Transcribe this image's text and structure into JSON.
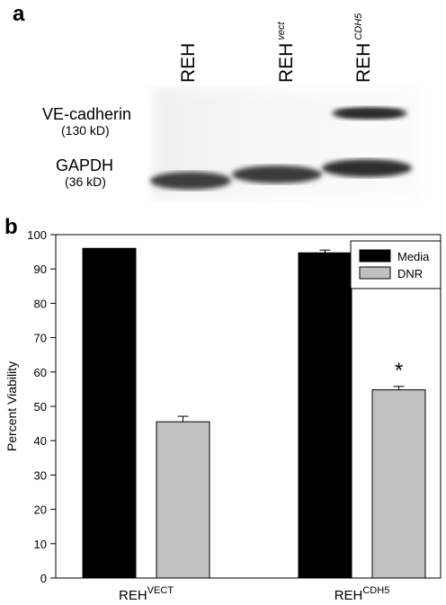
{
  "panel_a": {
    "label": "a",
    "lanes": [
      {
        "name": "REH",
        "sup": ""
      },
      {
        "name": "REH",
        "sup": "vect"
      },
      {
        "name": "REH",
        "sup": "CDH5"
      }
    ],
    "bands": [
      {
        "name": "VE-cadherin",
        "mw": "(130 kD)"
      },
      {
        "name": "GAPDH",
        "mw": "(36 kD)"
      }
    ]
  },
  "panel_b": {
    "label": "b"
  },
  "chart_data": {
    "type": "bar",
    "ylabel": "Percent Viability",
    "ylim": [
      0,
      100
    ],
    "yticks": [
      0,
      10,
      20,
      30,
      40,
      50,
      60,
      70,
      80,
      90,
      100
    ],
    "categories": [
      {
        "base": "REH",
        "sup": "VECT"
      },
      {
        "base": "REH",
        "sup": "CDH5"
      }
    ],
    "series": [
      {
        "name": "Media",
        "color": "#000000",
        "values": [
          96,
          94.7
        ],
        "errors": [
          0,
          0.8
        ]
      },
      {
        "name": "DNR",
        "color": "#c0c0c0",
        "values": [
          45.5,
          54.8
        ],
        "errors": [
          1.6,
          1.0
        ]
      }
    ],
    "annotations": [
      {
        "text": "*",
        "category": 1,
        "series": 1
      }
    ],
    "legend": "top-right",
    "grid": false
  }
}
